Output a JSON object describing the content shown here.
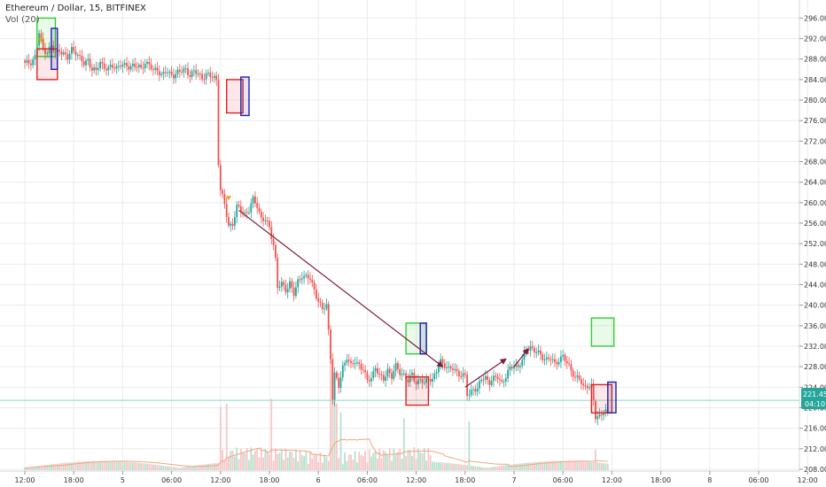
{
  "header": {
    "symbol_line": "Ethereum / Dollar, 15, BITFINEX",
    "volume_label": "Vol (20)"
  },
  "price_tag": {
    "price": "221.45",
    "countdown": "04:10"
  },
  "colors": {
    "up": "#26a69a",
    "down": "#ef5350",
    "grid": "#e9ecef",
    "current_line": "#8fd3c8",
    "trend_line": "#7b1f3a",
    "vol_ma": "#f4a582",
    "box_green": "#33cc33",
    "box_red": "#e02020",
    "box_blue": "#1f1fa8",
    "tag_bg": "#26a69a"
  },
  "chart_data": {
    "type": "candlestick",
    "title": "Ethereum / Dollar, 15, BITFINEX",
    "y_ticks": [
      296,
      292,
      288,
      284,
      280,
      276,
      272,
      268,
      264,
      260,
      256,
      252,
      248,
      244,
      240,
      236,
      232,
      228,
      224,
      220,
      216,
      212,
      208
    ],
    "y_tick_labels": [
      "296.00",
      "292.00",
      "288.00",
      "284.00",
      "280.00",
      "276.00",
      "272.00",
      "268.00",
      "264.00",
      "260.00",
      "256.00",
      "252.00",
      "248.00",
      "244.00",
      "240.00",
      "236.00",
      "232.00",
      "228.00",
      "224.00",
      "220.00",
      "216.00",
      "212.00",
      "208.00"
    ],
    "x_tick_labels": [
      "12:00",
      "18:00",
      "5",
      "06:00",
      "12:00",
      "18:00",
      "6",
      "06:00",
      "12:00",
      "18:00",
      "7",
      "06:00",
      "12:00",
      "18:00",
      "8",
      "06:00",
      "12:00"
    ],
    "x_tick_index": [
      0,
      24,
      48,
      72,
      96,
      120,
      144,
      168,
      192,
      216,
      240,
      264,
      288,
      312,
      336,
      360,
      384
    ],
    "bars_per_tick_span": 24,
    "ylim": [
      207,
      297
    ],
    "close_path": [
      [
        0,
        287.0
      ],
      [
        3,
        287.5
      ],
      [
        5,
        288.5
      ],
      [
        7,
        293.0
      ],
      [
        9,
        290.0
      ],
      [
        11,
        289.5
      ],
      [
        13,
        290.5
      ],
      [
        15,
        289.0
      ],
      [
        17,
        290.0
      ],
      [
        19,
        289.0
      ],
      [
        21,
        288.0
      ],
      [
        23,
        290.0
      ],
      [
        25,
        289.5
      ],
      [
        27,
        288.0
      ],
      [
        29,
        287.0
      ],
      [
        31,
        288.0
      ],
      [
        33,
        286.0
      ],
      [
        35,
        285.5
      ],
      [
        37,
        287.5
      ],
      [
        39,
        286.5
      ],
      [
        41,
        286.0
      ],
      [
        43,
        286.5
      ],
      [
        45,
        286.5
      ],
      [
        47,
        287.0
      ],
      [
        49,
        286.5
      ],
      [
        51,
        286.5
      ],
      [
        53,
        287.0
      ],
      [
        55,
        286.5
      ],
      [
        57,
        286.0
      ],
      [
        59,
        287.5
      ],
      [
        61,
        287.0
      ],
      [
        63,
        285.5
      ],
      [
        65,
        286.0
      ],
      [
        67,
        285.0
      ],
      [
        69,
        285.5
      ],
      [
        71,
        285.0
      ],
      [
        73,
        285.0
      ],
      [
        75,
        285.5
      ],
      [
        77,
        285.5
      ],
      [
        79,
        286.0
      ],
      [
        81,
        285.0
      ],
      [
        83,
        285.5
      ],
      [
        85,
        285.0
      ],
      [
        87,
        284.5
      ],
      [
        89,
        285.0
      ],
      [
        91,
        284.5
      ],
      [
        93,
        284.5
      ],
      [
        94,
        284.0
      ],
      [
        95,
        268.0
      ],
      [
        96,
        262.5
      ],
      [
        98,
        259.5
      ],
      [
        100,
        255.5
      ],
      [
        102,
        256.0
      ],
      [
        104,
        259.0
      ],
      [
        106,
        258.5
      ],
      [
        108,
        258.0
      ],
      [
        110,
        258.5
      ],
      [
        112,
        260.5
      ],
      [
        114,
        259.5
      ],
      [
        116,
        257.0
      ],
      [
        118,
        256.5
      ],
      [
        120,
        255.0
      ],
      [
        122,
        252.0
      ],
      [
        123,
        249.0
      ],
      [
        124,
        243.5
      ],
      [
        126,
        244.0
      ],
      [
        128,
        243.0
      ],
      [
        130,
        244.5
      ],
      [
        132,
        242.0
      ],
      [
        134,
        244.5
      ],
      [
        136,
        246.0
      ],
      [
        138,
        245.5
      ],
      [
        140,
        245.0
      ],
      [
        142,
        243.0
      ],
      [
        144,
        241.0
      ],
      [
        146,
        239.0
      ],
      [
        148,
        240.0
      ],
      [
        150,
        230.0
      ],
      [
        151,
        222.0
      ],
      [
        152,
        226.5
      ],
      [
        154,
        224.0
      ],
      [
        156,
        228.0
      ],
      [
        158,
        230.0
      ],
      [
        160,
        228.0
      ],
      [
        162,
        229.0
      ],
      [
        164,
        228.5
      ],
      [
        166,
        227.5
      ],
      [
        168,
        225.0
      ],
      [
        170,
        226.0
      ],
      [
        172,
        228.0
      ],
      [
        174,
        226.0
      ],
      [
        176,
        225.5
      ],
      [
        178,
        227.5
      ],
      [
        180,
        226.0
      ],
      [
        182,
        228.0
      ],
      [
        184,
        227.0
      ],
      [
        186,
        226.5
      ],
      [
        188,
        225.0
      ],
      [
        190,
        226.5
      ],
      [
        192,
        225.0
      ],
      [
        194,
        225.5
      ],
      [
        196,
        224.5
      ],
      [
        198,
        226.0
      ],
      [
        200,
        225.5
      ],
      [
        202,
        227.0
      ],
      [
        204,
        229.0
      ],
      [
        206,
        228.5
      ],
      [
        208,
        227.5
      ],
      [
        210,
        227.5
      ],
      [
        212,
        227.0
      ],
      [
        214,
        226.5
      ],
      [
        216,
        226.0
      ],
      [
        217,
        222.5
      ],
      [
        218,
        222.5
      ],
      [
        220,
        224.0
      ],
      [
        222,
        223.5
      ],
      [
        224,
        225.5
      ],
      [
        226,
        226.0
      ],
      [
        228,
        225.0
      ],
      [
        230,
        225.5
      ],
      [
        232,
        226.0
      ],
      [
        234,
        225.0
      ],
      [
        236,
        226.0
      ],
      [
        238,
        227.5
      ],
      [
        240,
        228.5
      ],
      [
        242,
        228.0
      ],
      [
        244,
        229.0
      ],
      [
        246,
        231.5
      ],
      [
        248,
        232.0
      ],
      [
        250,
        231.0
      ],
      [
        252,
        230.5
      ],
      [
        254,
        230.0
      ],
      [
        256,
        229.5
      ],
      [
        258,
        229.5
      ],
      [
        260,
        228.5
      ],
      [
        262,
        229.5
      ],
      [
        264,
        230.0
      ],
      [
        266,
        228.5
      ],
      [
        268,
        227.5
      ],
      [
        270,
        226.0
      ],
      [
        272,
        225.5
      ],
      [
        274,
        224.0
      ],
      [
        276,
        224.5
      ],
      [
        278,
        224.0
      ],
      [
        280,
        218.0
      ],
      [
        282,
        218.5
      ],
      [
        284,
        219.5
      ],
      [
        286,
        219.0
      ]
    ],
    "volume_spikes": [
      [
        96,
        0.55
      ],
      [
        99,
        0.58
      ],
      [
        121,
        0.62
      ],
      [
        150,
        1.0
      ],
      [
        151,
        0.85
      ],
      [
        152,
        0.7
      ],
      [
        153,
        0.58
      ],
      [
        155,
        0.5
      ],
      [
        186,
        0.45
      ],
      [
        218,
        0.42
      ],
      [
        280,
        0.18
      ]
    ],
    "current_price": 221.45,
    "trend_lines": [
      {
        "from": [
          105,
          258.5
        ],
        "to": [
          205,
          228.0
        ],
        "arrow": true
      },
      {
        "from": [
          216,
          224.0
        ],
        "to": [
          236,
          229.5
        ],
        "arrow": true
      },
      {
        "from": [
          240,
          228.0
        ],
        "to": [
          247,
          231.5
        ],
        "arrow": true
      }
    ],
    "boxes": [
      {
        "color": "green",
        "x0": 6,
        "x1": 15,
        "y0": 288.5,
        "y1": 296.0
      },
      {
        "color": "red",
        "x0": 6,
        "x1": 16,
        "y0": 284.0,
        "y1": 290.0
      },
      {
        "color": "blue",
        "x0": 13,
        "x1": 16,
        "y0": 286.0,
        "y1": 294.0
      },
      {
        "color": "red",
        "x0": 99,
        "x1": 107,
        "y0": 277.5,
        "y1": 284.0
      },
      {
        "color": "blue",
        "x0": 106,
        "x1": 110,
        "y0": 277.0,
        "y1": 284.5
      },
      {
        "color": "green",
        "x0": 187,
        "x1": 197,
        "y0": 230.5,
        "y1": 236.5
      },
      {
        "color": "red",
        "x0": 187,
        "x1": 198,
        "y0": 220.5,
        "y1": 226.0
      },
      {
        "color": "blue",
        "x0": 194,
        "x1": 197,
        "y0": 230.5,
        "y1": 236.5
      },
      {
        "color": "green",
        "x0": 278,
        "x1": 289,
        "y0": 232.0,
        "y1": 237.5
      },
      {
        "color": "red",
        "x0": 278,
        "x1": 288,
        "y0": 219.0,
        "y1": 224.5
      },
      {
        "color": "blue",
        "x0": 286,
        "x1": 290,
        "y0": 219.0,
        "y1": 225.0
      }
    ],
    "markers": [
      [
        8,
        291.5
      ],
      [
        100,
        260.8
      ]
    ]
  }
}
